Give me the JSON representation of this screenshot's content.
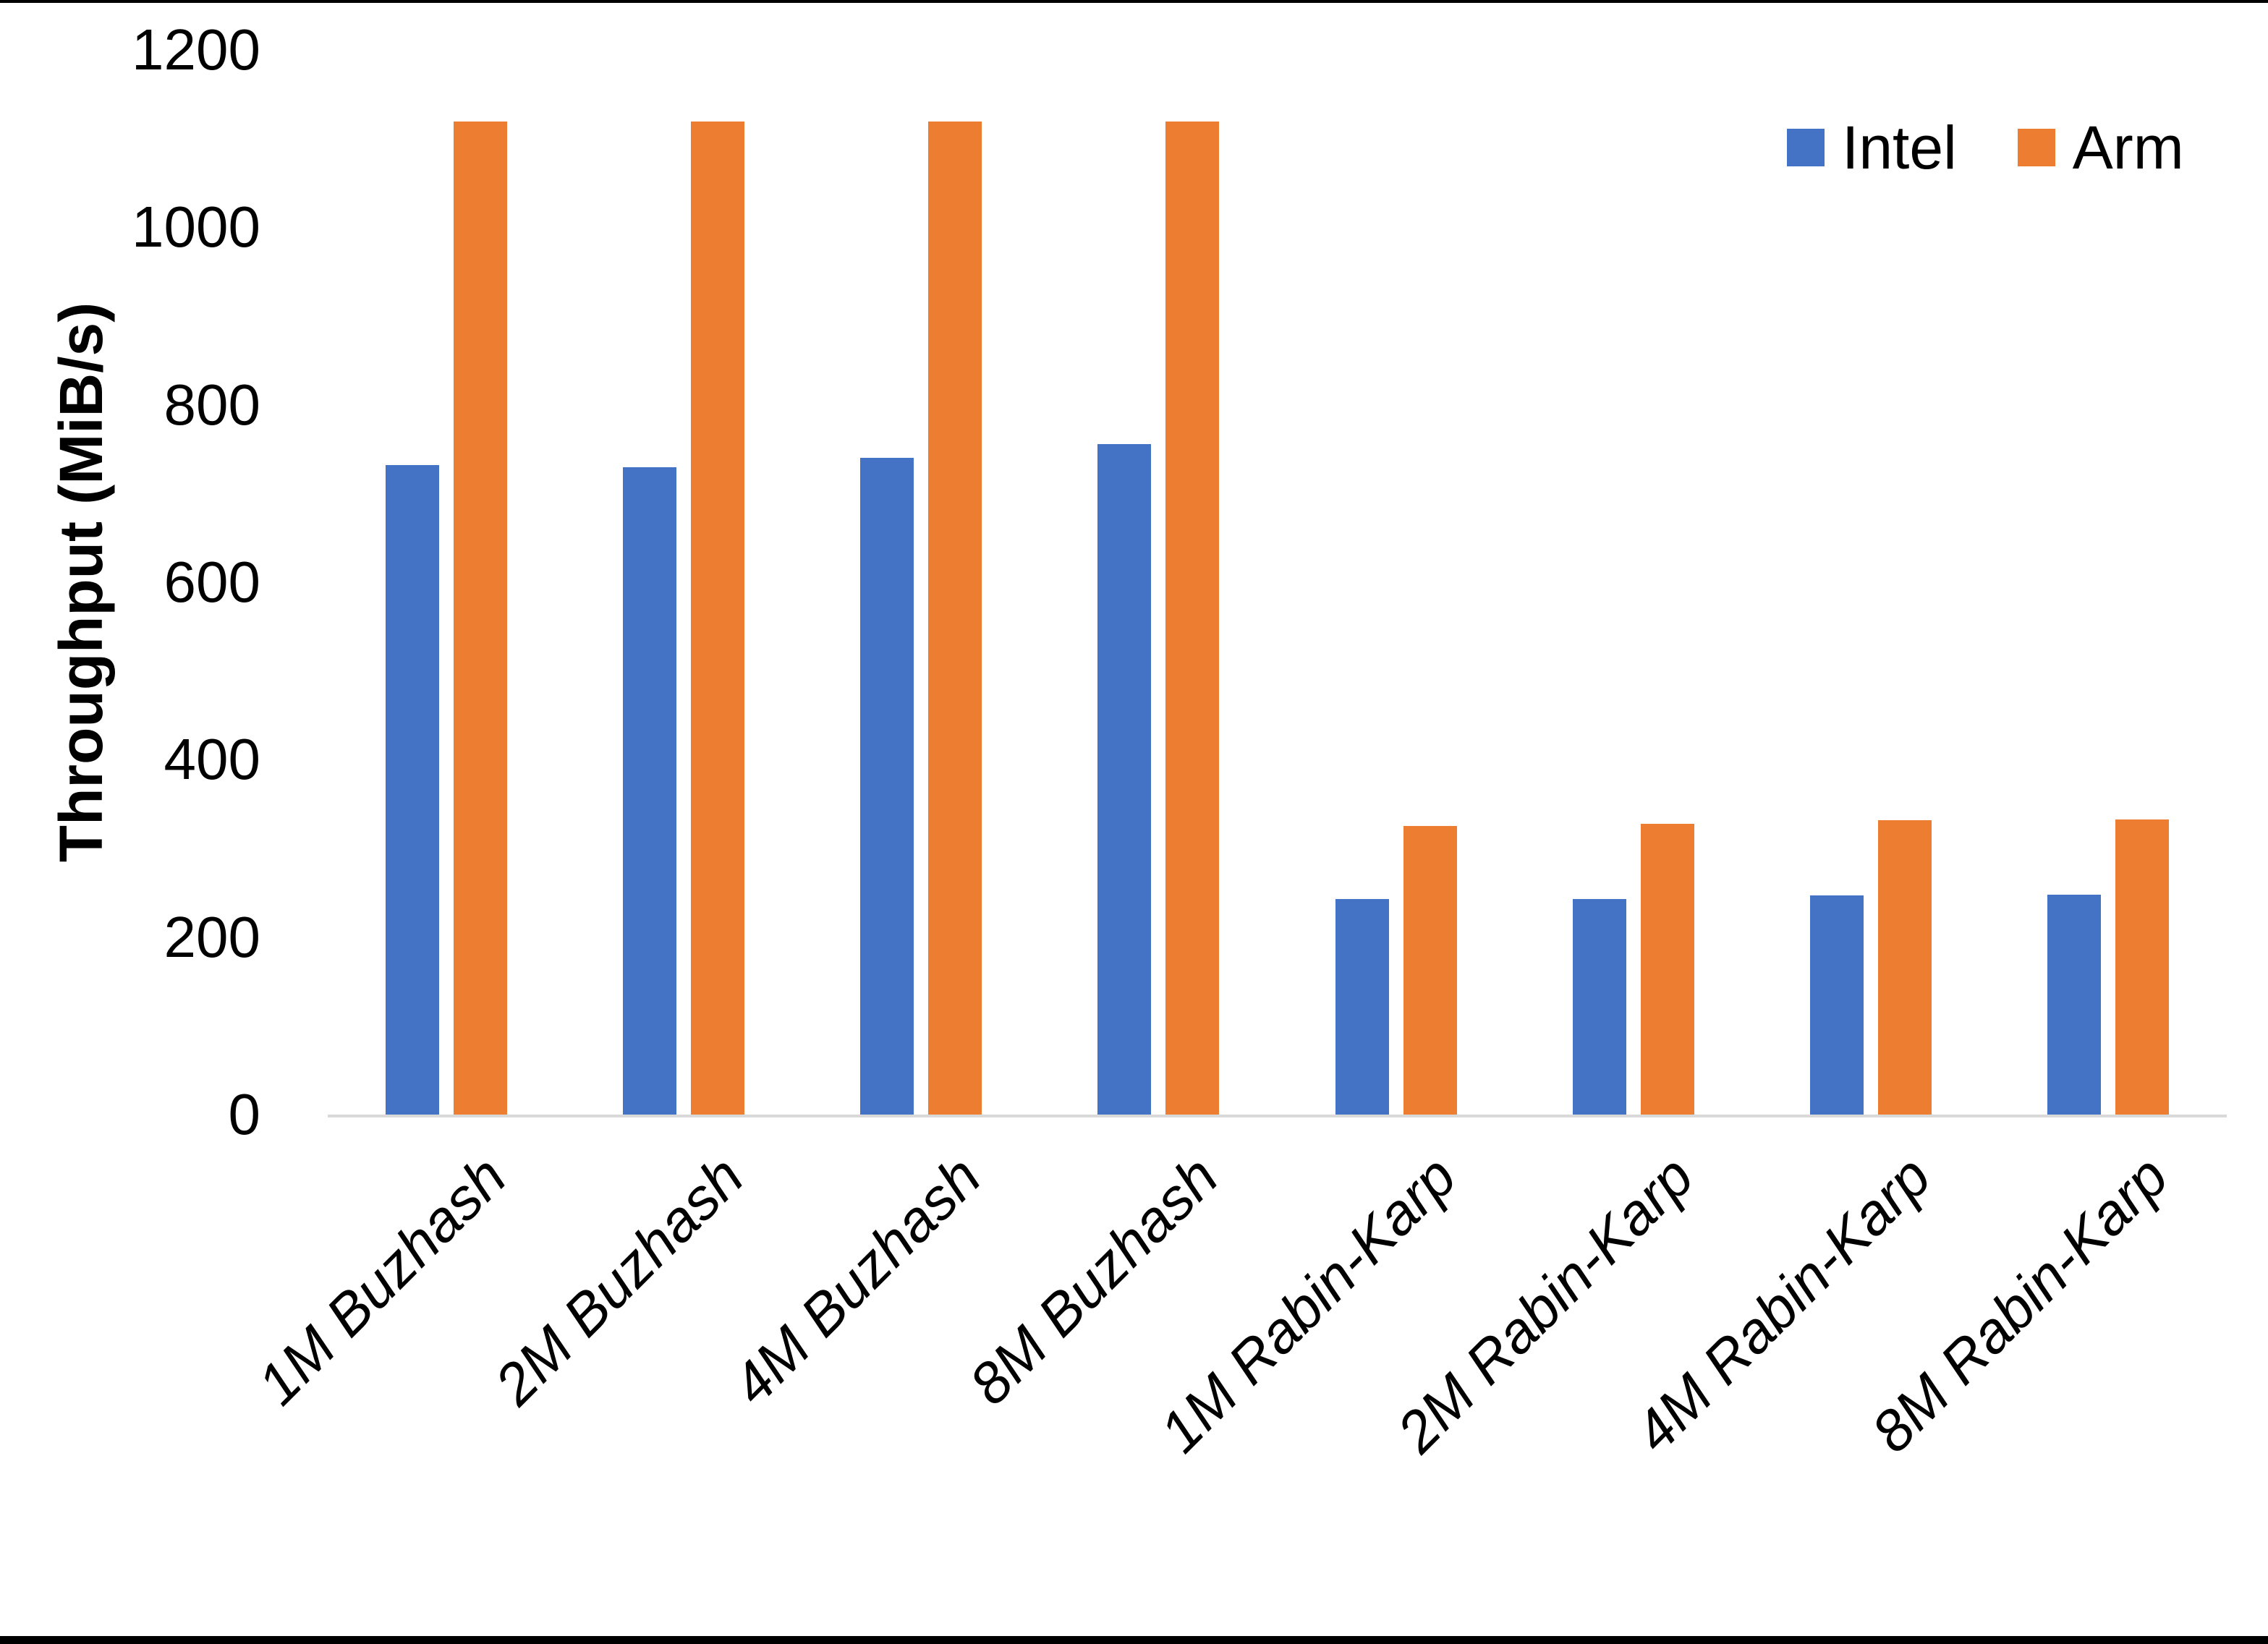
{
  "figure": {
    "background": "#ffffff",
    "edge_line_color": "#000000"
  },
  "y_axis": {
    "title": "Throughput (MiB/s)",
    "tick_label_color": "#000000",
    "baseline_color": "#d9d9d9"
  },
  "legend": {
    "position": "top-right",
    "items": [
      {
        "label": "Intel",
        "color": "#4472C4"
      },
      {
        "label": "Arm",
        "color": "#ED7D31"
      }
    ]
  },
  "chart_data": {
    "type": "bar",
    "title": "",
    "xlabel": "",
    "ylabel": "Throughput (MiB/s)",
    "ylim": [
      0,
      1200
    ],
    "yticks": [
      0,
      200,
      400,
      600,
      800,
      1000,
      1200
    ],
    "grid": false,
    "legend_position": "top-right",
    "categories": [
      "1M Buzhash",
      "2M Buzhash",
      "4M Buzhash",
      "8M Buzhash",
      "1M Rabin-Karp",
      "2M Rabin-Karp",
      "4M Rabin-Karp",
      "8M Rabin-Karp"
    ],
    "series": [
      {
        "name": "Intel",
        "color": "#4472C4",
        "values": [
          732,
          730,
          740,
          756,
          243,
          243,
          247,
          248
        ]
      },
      {
        "name": "Arm",
        "color": "#ED7D31",
        "values": [
          1119,
          1119,
          1119,
          1119,
          325,
          328,
          332,
          333
        ]
      }
    ]
  }
}
